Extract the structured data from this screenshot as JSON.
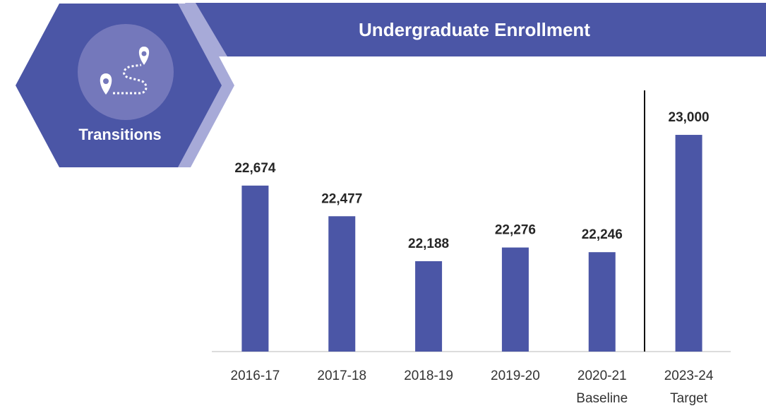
{
  "badge": {
    "label": "Transitions"
  },
  "chart_data": {
    "type": "bar",
    "title": "Undergraduate Enrollment",
    "categories": [
      "2016-17",
      "2017-18",
      "2018-19",
      "2019-20",
      "2020-21",
      "2023-24"
    ],
    "sublabels": [
      null,
      null,
      null,
      null,
      "Baseline",
      "Target"
    ],
    "values": [
      22674,
      22477,
      22188,
      22276,
      22246,
      23000
    ],
    "value_labels": [
      "22,674",
      "22,477",
      "22,188",
      "22,276",
      "22,246",
      "23,000"
    ],
    "color": "#4b56a6",
    "ylim": [
      21607,
      23100
    ]
  }
}
